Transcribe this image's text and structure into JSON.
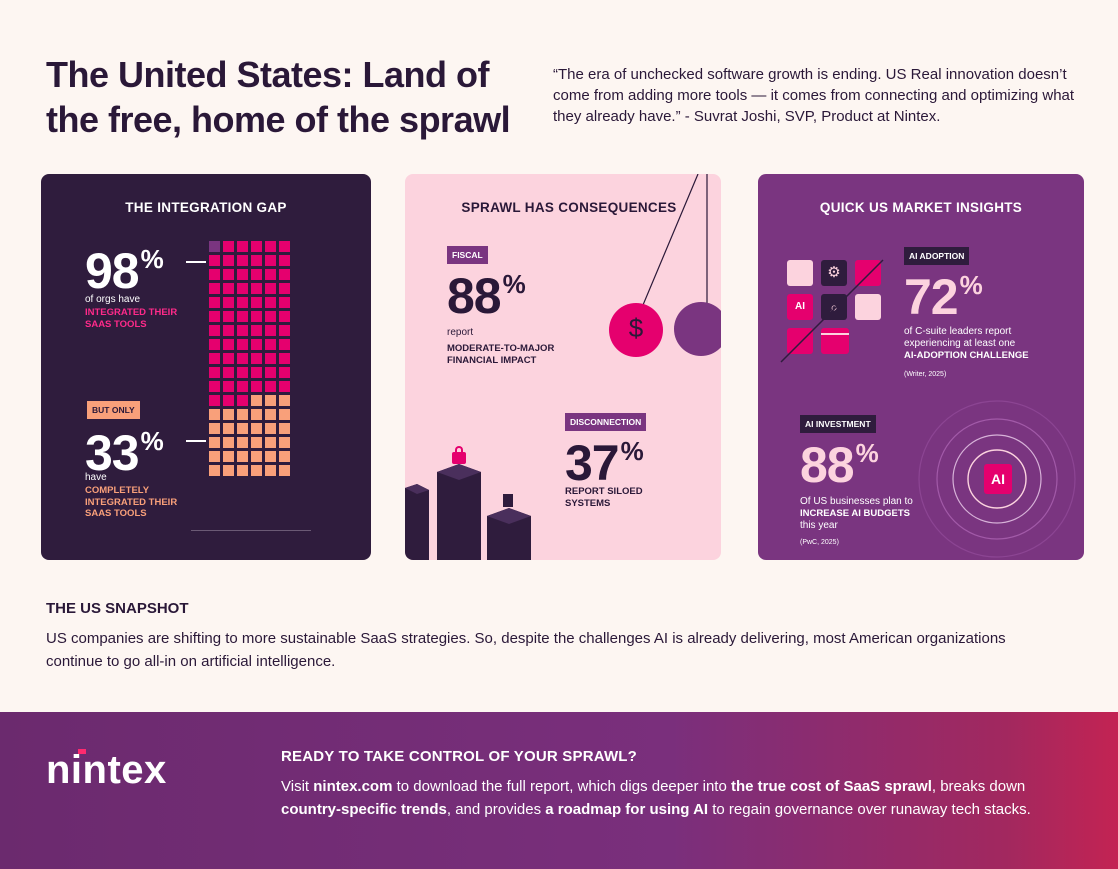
{
  "header": {
    "title": "The United States: Land of the free, home of the sprawl",
    "quote": "“The era of unchecked software growth is ending. US Real innovation doesn’t come from adding more tools — it comes from connecting and optimizing what they already have.” - Suvrat Joshi, SVP, Product at Nintex."
  },
  "integration_gap": {
    "title": "THE INTEGRATION GAP",
    "stat1": {
      "value": "98",
      "pct": "%",
      "label": "of orgs have",
      "caps": "INTEGRATED THEIR SAAS TOOLS"
    },
    "tag": "BUT ONLY",
    "stat2": {
      "value": "33",
      "pct": "%",
      "label": "have",
      "caps": "COMPLETELY INTEGRATED THEIR SAAS TOOLS"
    },
    "waffle": {
      "total": 100,
      "integrated": 98,
      "completely": 33
    }
  },
  "sprawl": {
    "title": "SPRAWL HAS CONSEQUENCES",
    "fiscal": {
      "tag": "FISCAL",
      "value": "88",
      "pct": "%",
      "label": "report",
      "caps": "MODERATE-TO-MAJOR FINANCIAL IMPACT"
    },
    "disconnection": {
      "tag": "DISCONNECTION",
      "value": "37",
      "pct": "%",
      "caps": "REPORT SILOED SYSTEMS"
    },
    "coin_symbol": "$"
  },
  "insights": {
    "title": "QUICK US MARKET INSIGHTS",
    "ai_adoption": {
      "tag": "AI ADOPTION",
      "value": "72",
      "pct": "%",
      "label": "of C-suite leaders report experiencing at least one",
      "caps": "AI-ADOPTION CHALLENGE",
      "source": "(Writer, 2025)"
    },
    "ai_investment": {
      "tag": "AI INVESTMENT",
      "value": "88",
      "pct": "%",
      "label1": "Of US businesses plan to",
      "caps": "INCREASE AI BUDGETS",
      "label2": "this year",
      "source": "(PwC, 2025)"
    },
    "ai_chip_label": "AI",
    "ai_tile_label": "AI"
  },
  "snapshot": {
    "title": "THE US SNAPSHOT",
    "text": "US companies are shifting to more sustainable SaaS strategies. So, despite the challenges AI is already delivering, most American organizations continue to go all-in on artificial intelligence."
  },
  "footer": {
    "logo": "nintex",
    "cta_title": "READY TO TAKE CONTROL OF YOUR SPRAWL?",
    "cta_parts": [
      {
        "t": "Visit ",
        "b": false
      },
      {
        "t": "nintex.com",
        "b": true
      },
      {
        "t": " to download the full report, which digs deeper into ",
        "b": false
      },
      {
        "t": "the true cost of SaaS sprawl",
        "b": true
      },
      {
        "t": ", breaks down ",
        "b": false
      },
      {
        "t": "country-specific trends",
        "b": true
      },
      {
        "t": ", and provides ",
        "b": false
      },
      {
        "t": "a roadmap for using AI",
        "b": true
      },
      {
        "t": " to regain governance over runaway tech stacks.",
        "b": false
      }
    ]
  },
  "colors": {
    "dark_purple": "#2f1c3d",
    "pink": "#fcd3de",
    "purple": "#7a3580",
    "magenta": "#e5006e",
    "salmon": "#f9a07a",
    "waffle_empty": "#7a3580"
  }
}
